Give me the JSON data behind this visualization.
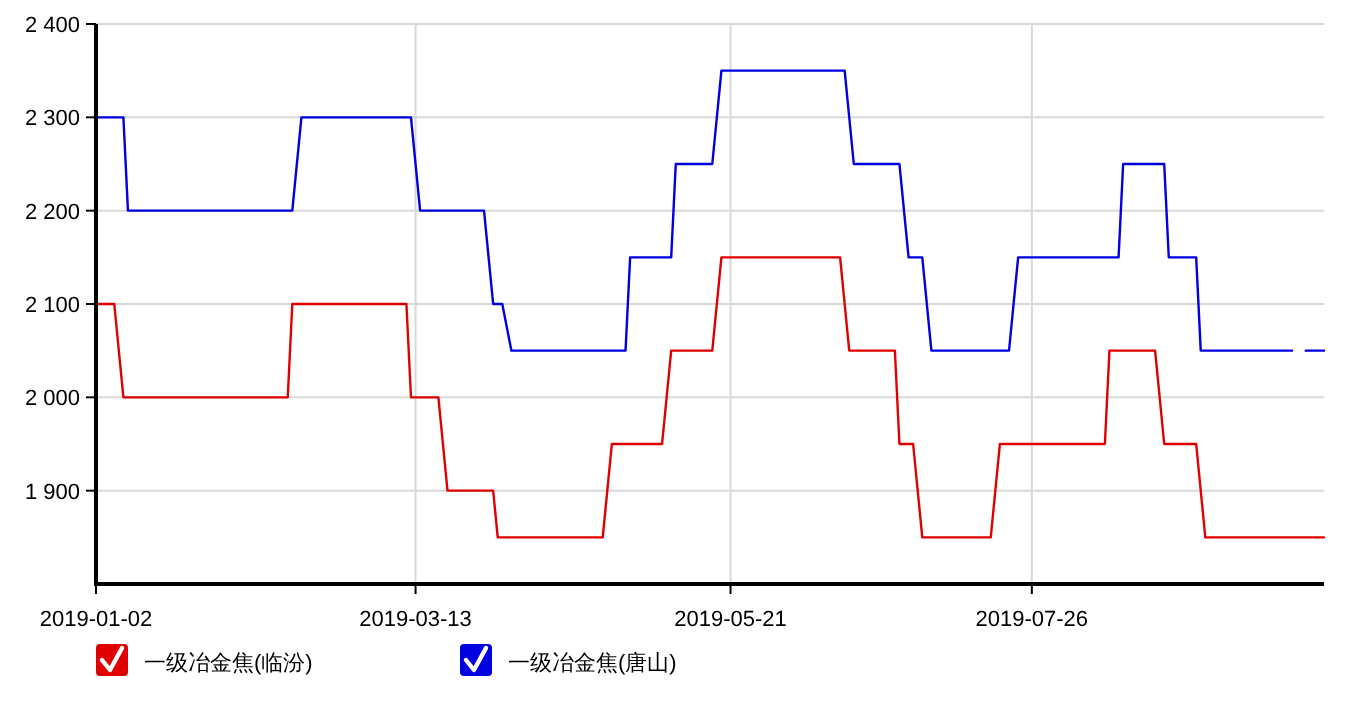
{
  "chart_data": {
    "type": "line",
    "xlim": [
      "2019-01-02",
      "2019-09-28"
    ],
    "xticks": [
      "2019-01-02",
      "2019-03-13",
      "2019-05-21",
      "2019-07-26"
    ],
    "ylim": [
      1800,
      2400
    ],
    "yticks": [
      {
        "value": 1900,
        "label": "1 900"
      },
      {
        "value": 2000,
        "label": "2 000"
      },
      {
        "value": 2100,
        "label": "2 100"
      },
      {
        "value": 2200,
        "label": "2 200"
      },
      {
        "value": 2300,
        "label": "2 300"
      },
      {
        "value": 2400,
        "label": "2 400"
      }
    ],
    "grid": true,
    "legend": "bottom",
    "series": [
      {
        "name": "一级冶金焦(临汾)",
        "color": "#e00000",
        "x": [
          "2019-01-02",
          "2019-01-06",
          "2019-01-08",
          "2019-02-13",
          "2019-02-14",
          "2019-03-11",
          "2019-03-12",
          "2019-03-18",
          "2019-03-20",
          "2019-03-30",
          "2019-03-31",
          "2019-04-23",
          "2019-04-25",
          "2019-05-06",
          "2019-05-08",
          "2019-05-17",
          "2019-05-19",
          "2019-06-14",
          "2019-06-16",
          "2019-06-26",
          "2019-06-27",
          "2019-06-30",
          "2019-07-02",
          "2019-07-17",
          "2019-07-19",
          "2019-08-11",
          "2019-08-12",
          "2019-08-22",
          "2019-08-24",
          "2019-08-31",
          "2019-09-02",
          "2019-09-28"
        ],
        "values": [
          2100,
          2100,
          2000,
          2000,
          2100,
          2100,
          2000,
          2000,
          1900,
          1900,
          1850,
          1850,
          1950,
          1950,
          2050,
          2050,
          2150,
          2150,
          2050,
          2050,
          1950,
          1950,
          1850,
          1850,
          1950,
          1950,
          2050,
          2050,
          1950,
          1950,
          1850,
          1850
        ]
      },
      {
        "name": "一级冶金焦(唐山)",
        "color": "#0000e0",
        "x": [
          "2019-01-02",
          "2019-01-08",
          "2019-01-09",
          "2019-02-14",
          "2019-02-16",
          "2019-03-12",
          "2019-03-14",
          "2019-03-28",
          "2019-03-30",
          "2019-04-01",
          "2019-04-03",
          "2019-04-28",
          "2019-04-29",
          "2019-05-08",
          "2019-05-09",
          "2019-05-17",
          "2019-05-19",
          "2019-06-15",
          "2019-06-17",
          "2019-06-27",
          "2019-06-29",
          "2019-07-02",
          "2019-07-04",
          "2019-07-21",
          "2019-07-23",
          "2019-08-14",
          "2019-08-15",
          "2019-08-24",
          "2019-08-25",
          "2019-08-31",
          "2019-09-01",
          "2019-09-21"
        ],
        "values": [
          2300,
          2300,
          2200,
          2200,
          2300,
          2300,
          2200,
          2200,
          2100,
          2100,
          2050,
          2050,
          2150,
          2150,
          2250,
          2250,
          2350,
          2350,
          2250,
          2250,
          2150,
          2150,
          2050,
          2050,
          2150,
          2150,
          2250,
          2250,
          2150,
          2150,
          2050,
          2050
        ]
      },
      {
        "color": "#0000e0",
        "x": [
          "2019-09-24",
          "2019-09-28"
        ],
        "values": [
          2050,
          2050
        ]
      }
    ]
  }
}
